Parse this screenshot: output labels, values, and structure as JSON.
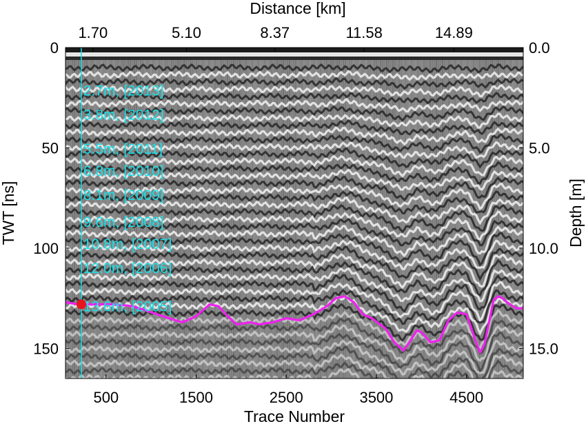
{
  "chart_data": {
    "type": "line",
    "title": "",
    "xlabel": "Trace Number",
    "ylabel": "TWT [ns]",
    "x2label": "Distance [km]",
    "y2label": "Depth [m]",
    "xlim": [
      50,
      5130
    ],
    "ylim": [
      0,
      165
    ],
    "y2lim": [
      0,
      16.5
    ],
    "x_ticks": [
      500,
      1500,
      2500,
      3500,
      4500
    ],
    "x_tick_labels": [
      "500",
      "1500",
      "2500",
      "3500",
      "4500"
    ],
    "y_ticks": [
      0,
      50,
      100,
      150
    ],
    "y_tick_labels": [
      "0",
      "50",
      "100",
      "150"
    ],
    "x2_ticks": [
      355,
      1392,
      2374,
      3364,
      4360
    ],
    "x2_tick_labels": [
      "1.70",
      "5.10",
      "8.37",
      "11.58",
      "14.89"
    ],
    "y2_ticks": [
      0,
      50,
      100,
      150
    ],
    "y2_tick_labels": [
      "0.0",
      "5.0",
      "10.0",
      "15.0"
    ],
    "background": "ground-penetrating radar radargram (grayscale)",
    "vertical_marker": {
      "trace": 225,
      "color": "#19e0e8"
    },
    "marker_point": {
      "trace": 225,
      "twt": 128,
      "color": "#e8141e"
    },
    "annotations": [
      {
        "text": "2.7m, [2013]",
        "twt": 21.5
      },
      {
        "text": "3.8m, [2012]",
        "twt": 33.5
      },
      {
        "text": "5.5m, [2011]",
        "twt": 50.5
      },
      {
        "text": "6.8m, [2010]",
        "twt": 61.5
      },
      {
        "text": "8.1m, [2009]",
        "twt": 73.5
      },
      {
        "text": "9.6m, [2008]",
        "twt": 87
      },
      {
        "text": "10.8m, [2007]",
        "twt": 98
      },
      {
        "text": "12.0m, [2006]",
        "twt": 110
      },
      {
        "text": "13.6m, [2005]",
        "twt": 129
      }
    ],
    "series": [
      {
        "name": "2005 horizon",
        "color": "#ee22ee",
        "x": [
          50,
          200,
          400,
          600,
          800,
          1000,
          1200,
          1350,
          1500,
          1650,
          1750,
          1850,
          1950,
          2100,
          2200,
          2350,
          2500,
          2650,
          2800,
          2950,
          3050,
          3150,
          3250,
          3350,
          3450,
          3600,
          3700,
          3800,
          3850,
          3950,
          4000,
          4100,
          4200,
          4300,
          4400,
          4500,
          4600,
          4650,
          4700,
          4750,
          4800,
          4850,
          4900,
          4950,
          5050,
          5130
        ],
        "values": [
          127,
          128,
          128,
          128,
          129,
          132,
          135,
          137,
          134,
          128,
          129,
          134,
          138,
          137,
          138,
          137,
          135,
          136,
          133,
          129,
          125,
          124,
          127,
          133,
          135,
          140,
          147,
          151,
          148,
          141,
          142,
          147,
          146,
          136,
          132,
          133,
          146,
          152,
          148,
          137,
          126,
          124,
          125,
          127,
          130,
          130
        ]
      }
    ]
  }
}
